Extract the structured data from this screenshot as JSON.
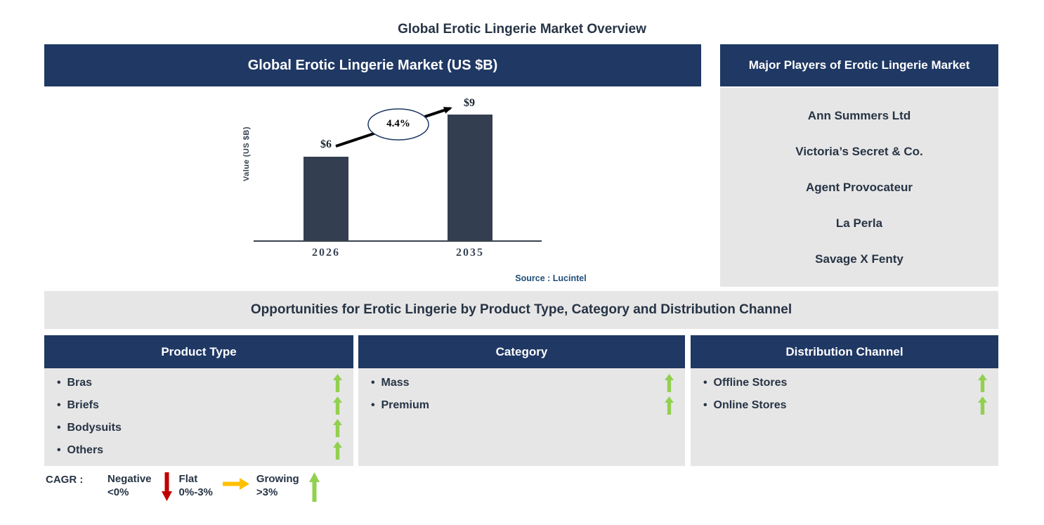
{
  "page_title": "Global Erotic Lingerie Market Overview",
  "chart_panel": {
    "title": "Global Erotic Lingerie Market (US $B)"
  },
  "chart_data": {
    "type": "bar",
    "title": "Global Erotic Lingerie Market (US $B)",
    "categories": [
      "2026",
      "2035"
    ],
    "values": [
      6,
      9
    ],
    "bar_labels": [
      "$6",
      "$9"
    ],
    "cagr_label": "4.4%",
    "ylabel": "Value (US $B)",
    "xlabel": "",
    "ylim": [
      0,
      11
    ],
    "grid": false,
    "legend_position": "none",
    "annotations": [
      "CAGR 4.4% growth arrow from 2026 to 2035"
    ],
    "source": "Source : Lucintel"
  },
  "players_panel": {
    "title": "Major Players of Erotic Lingerie Market",
    "players": [
      "Ann Summers Ltd",
      "Victoria’s Secret & Co.",
      "Agent Provocateur",
      "La Perla",
      "Savage X Fenty"
    ]
  },
  "opportunities": {
    "title": "Opportunities for Erotic Lingerie by Product Type, Category and Distribution Channel",
    "columns": [
      {
        "title": "Product Type",
        "items": [
          {
            "label": "Bras",
            "trend": "growing"
          },
          {
            "label": "Briefs",
            "trend": "growing"
          },
          {
            "label": "Bodysuits",
            "trend": "growing"
          },
          {
            "label": "Others",
            "trend": "growing"
          }
        ]
      },
      {
        "title": "Category",
        "items": [
          {
            "label": "Mass",
            "trend": "growing"
          },
          {
            "label": "Premium",
            "trend": "growing"
          }
        ]
      },
      {
        "title": "Distribution Channel",
        "items": [
          {
            "label": "Offline Stores",
            "trend": "growing"
          },
          {
            "label": "Online Stores",
            "trend": "growing"
          }
        ]
      }
    ]
  },
  "legend": {
    "label": "CAGR :",
    "entries": [
      {
        "name": "Negative",
        "range": "<0%",
        "direction": "down",
        "color": "#C00000"
      },
      {
        "name": "Flat",
        "range": "0%-3%",
        "direction": "right",
        "color": "#FFC000"
      },
      {
        "name": "Growing",
        "range": ">3%",
        "direction": "up",
        "color": "#92D050"
      }
    ]
  },
  "colors": {
    "navy": "#1F3864",
    "bar_slate": "#333F50",
    "panel_gray": "#E7E6E6",
    "dark_text": "#263445",
    "source_blue": "#1F4E79",
    "growing_green": "#92D050",
    "negative_red": "#C00000",
    "flat_orange": "#FFC000",
    "axis": "#39424E"
  }
}
